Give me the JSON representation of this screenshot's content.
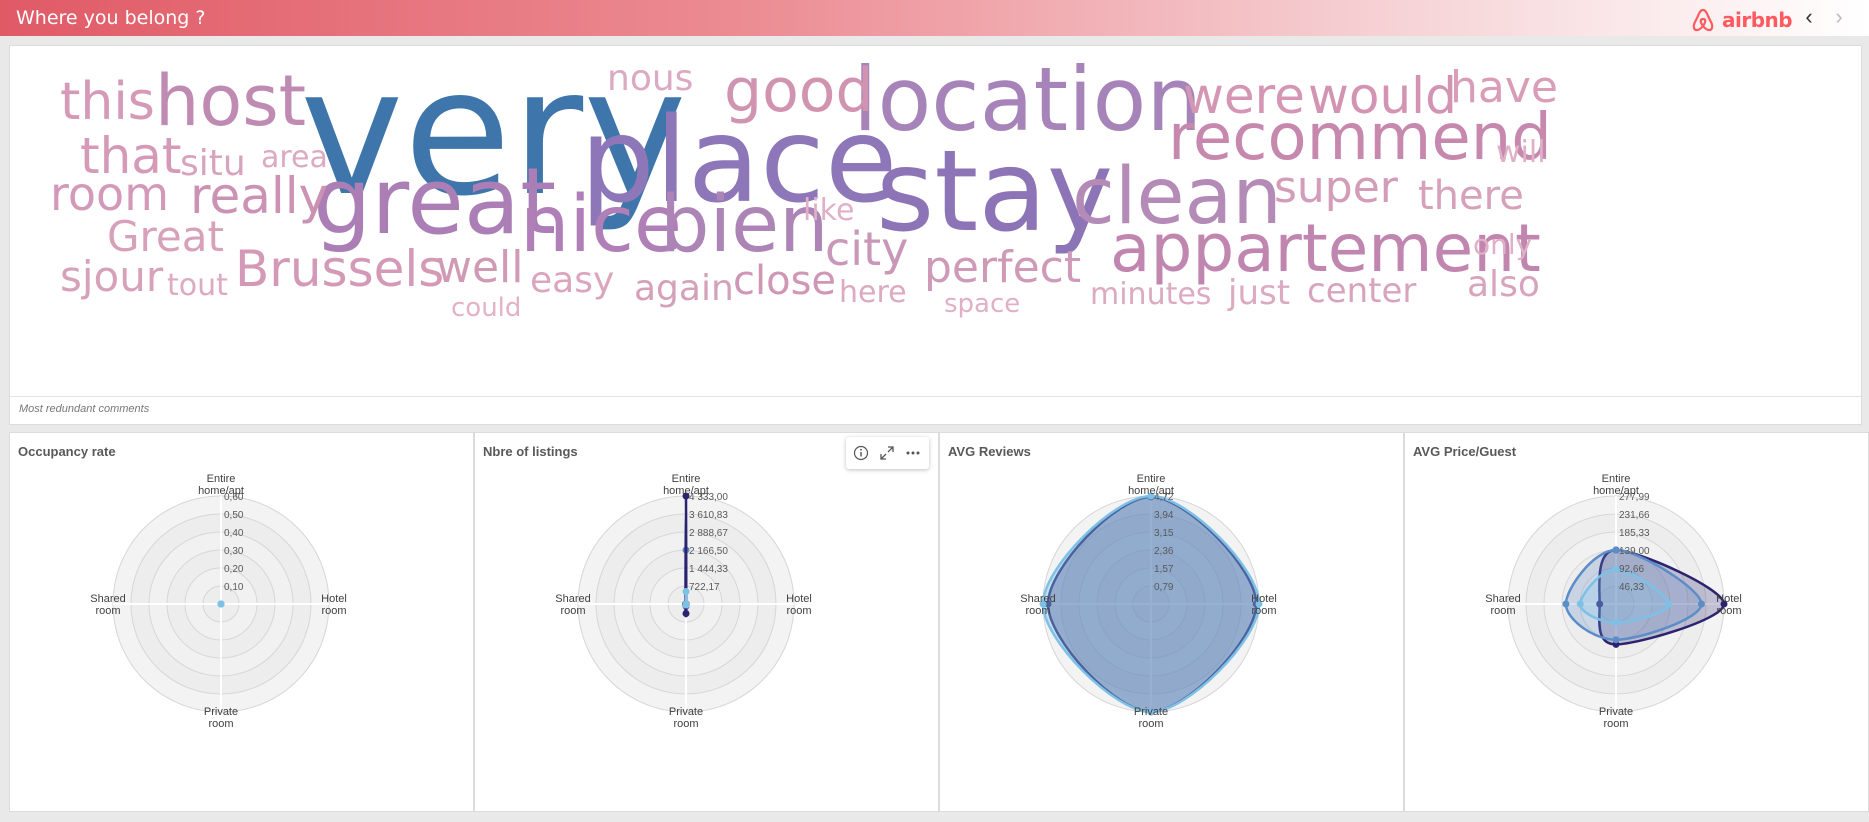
{
  "app": {
    "title": "Where you belong ?",
    "brand": "airbnb"
  },
  "colors": {
    "accent": "#ff5a5f",
    "series": [
      "#3a77ae",
      "#8b6fb7",
      "#cf87a9",
      "#2b2370",
      "#5b8dc9",
      "#7dc1e6"
    ]
  },
  "wordcloud": {
    "footnote": "Most redundant comments",
    "words": [
      {
        "text": "very",
        "color": "#3e75ab"
      },
      {
        "text": "place",
        "color": "#8d77b9"
      },
      {
        "text": "great",
        "color": "#ab7fb5"
      },
      {
        "text": "stay",
        "color": "#8c74b6"
      },
      {
        "text": "location",
        "color": "#a684b9"
      },
      {
        "text": "host",
        "color": "#bf8bb2"
      },
      {
        "text": "nice",
        "color": "#b07fb8"
      },
      {
        "text": "bien",
        "color": "#ac85b6"
      },
      {
        "text": "clean",
        "color": "#b48ab7"
      },
      {
        "text": "appartement",
        "color": "#c186b0"
      },
      {
        "text": "recommend",
        "color": "#c788ae"
      },
      {
        "text": "good",
        "color": "#d194b0"
      },
      {
        "text": "were",
        "color": "#d596b4"
      },
      {
        "text": "would",
        "color": "#d294b2"
      },
      {
        "text": "have",
        "color": "#d99db8"
      },
      {
        "text": "this",
        "color": "#d59ab8"
      },
      {
        "text": "that",
        "color": "#d59ab8"
      },
      {
        "text": "room",
        "color": "#d29ab8"
      },
      {
        "text": "really",
        "color": "#cc92b4"
      },
      {
        "text": "situ",
        "color": "#d8a3bd"
      },
      {
        "text": "area",
        "color": "#dcaac1"
      },
      {
        "text": "nous",
        "color": "#dba9c1"
      },
      {
        "text": "Great",
        "color": "#d7a1b9"
      },
      {
        "text": "sjour",
        "color": "#d7a1b9"
      },
      {
        "text": "tout",
        "color": "#dcaac1"
      },
      {
        "text": "Brussels",
        "color": "#d499b7"
      },
      {
        "text": "well",
        "color": "#d09ab5"
      },
      {
        "text": "could",
        "color": "#e2b3c7"
      },
      {
        "text": "easy",
        "color": "#dba6bd"
      },
      {
        "text": "again",
        "color": "#d5a1b9"
      },
      {
        "text": "close",
        "color": "#cf97b5"
      },
      {
        "text": "like",
        "color": "#e0b1c6"
      },
      {
        "text": "city",
        "color": "#c997b8"
      },
      {
        "text": "here",
        "color": "#dcaac1"
      },
      {
        "text": "perfect",
        "color": "#cf9ab8"
      },
      {
        "text": "space",
        "color": "#e0b1c6"
      },
      {
        "text": "super",
        "color": "#d39cb8"
      },
      {
        "text": "there",
        "color": "#d7a1bb"
      },
      {
        "text": "will",
        "color": "#e0b1c6"
      },
      {
        "text": "only",
        "color": "#e0b1c6"
      },
      {
        "text": "minutes",
        "color": "#dcaac1"
      },
      {
        "text": "just",
        "color": "#dcaac1"
      },
      {
        "text": "center",
        "color": "#d8a3bd"
      },
      {
        "text": "also",
        "color": "#d8a3bd"
      }
    ]
  },
  "radar_axes": [
    "Entire home/apt",
    "Hotel room",
    "Private room",
    "Shared room"
  ],
  "toolbar": {
    "info_icon": "info-icon",
    "expand_icon": "expand-icon",
    "more_icon": "more-icon"
  },
  "chart_data": [
    {
      "type": "radar",
      "title": "Occupancy rate",
      "axes": [
        "Entire home/apt",
        "Hotel room",
        "Private room",
        "Shared room"
      ],
      "tick_labels": [
        "0,10",
        "0,20",
        "0,30",
        "0,40",
        "0,50",
        "0,60"
      ],
      "range": [
        0,
        0.6
      ],
      "series": [
        {
          "values": [
            0,
            0,
            0,
            0
          ],
          "color": "#7dc1e6"
        }
      ]
    },
    {
      "type": "radar",
      "title": "Nbre of listings",
      "axes": [
        "Entire home/apt",
        "Hotel room",
        "Private room",
        "Shared room"
      ],
      "tick_labels": [
        "722,17",
        "1 444,33",
        "2 166,50",
        "2 888,67",
        "3 610,83",
        "4 333,00"
      ],
      "range": [
        0,
        4333
      ],
      "series": [
        {
          "values": [
            2166,
            5,
            100,
            10
          ],
          "color": "#5b8dc9"
        },
        {
          "values": [
            4333,
            10,
            380,
            20
          ],
          "color": "#2b2370"
        },
        {
          "values": [
            500,
            2,
            40,
            5
          ],
          "color": "#7dc1e6"
        }
      ]
    },
    {
      "type": "radar",
      "title": "AVG Reviews",
      "axes": [
        "Entire home/apt",
        "Hotel room",
        "Private room",
        "Shared room"
      ],
      "tick_labels": [
        "0,79",
        "1,57",
        "2,36",
        "3,15",
        "3,94",
        "4,72"
      ],
      "range": [
        0,
        4.72
      ],
      "series": [
        {
          "values": [
            4.68,
            4.6,
            4.72,
            4.5
          ],
          "color": "#2b2370"
        },
        {
          "values": [
            4.72,
            4.72,
            4.72,
            4.72
          ],
          "color": "#7dc1e6"
        }
      ]
    },
    {
      "type": "radar",
      "title": "AVG Price/Guest",
      "axes": [
        "Entire home/apt",
        "Hotel room",
        "Private room",
        "Shared room"
      ],
      "tick_labels": [
        "46,33",
        "92,66",
        "139,00",
        "185,33",
        "231,66",
        "277,99"
      ],
      "range": [
        0,
        277.99
      ],
      "series": [
        {
          "values": [
            139,
            278,
            104,
            42
          ],
          "color": "#2b2370"
        },
        {
          "values": [
            139,
            220,
            92,
            129
          ],
          "color": "#5b8dc9"
        },
        {
          "values": [
            90,
            135,
            48,
            92
          ],
          "color": "#7dc1e6"
        }
      ]
    }
  ]
}
